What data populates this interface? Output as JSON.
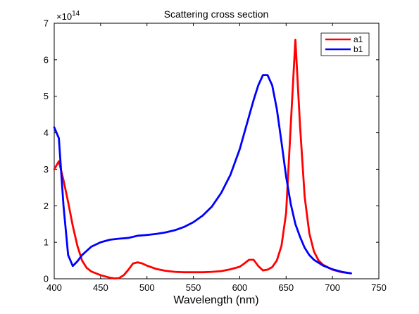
{
  "chart_data": {
    "type": "line",
    "title": "Scattering cross section",
    "xlabel": "Wavelength (nm)",
    "ylabel": "",
    "xlim": [
      400,
      750
    ],
    "ylim": [
      0,
      7
    ],
    "x_ticks": [
      "400",
      "450",
      "500",
      "550",
      "600",
      "650",
      "700",
      "750"
    ],
    "y_ticks": [
      "0",
      "1",
      "2",
      "3",
      "4",
      "5",
      "6",
      "7"
    ],
    "y_multiplier_base": "×10",
    "y_multiplier_exponent": "14",
    "grid": false,
    "legend_position": "top-right",
    "series": [
      {
        "name": "a1",
        "color": "#ff0000",
        "points": [
          [
            400,
            3.0
          ],
          [
            405,
            3.22
          ],
          [
            410,
            2.7
          ],
          [
            415,
            2.1
          ],
          [
            420,
            1.45
          ],
          [
            425,
            0.9
          ],
          [
            430,
            0.5
          ],
          [
            435,
            0.3
          ],
          [
            440,
            0.2
          ],
          [
            450,
            0.1
          ],
          [
            460,
            0.03
          ],
          [
            465,
            0.01
          ],
          [
            470,
            0.02
          ],
          [
            475,
            0.1
          ],
          [
            480,
            0.25
          ],
          [
            485,
            0.42
          ],
          [
            490,
            0.45
          ],
          [
            495,
            0.42
          ],
          [
            500,
            0.36
          ],
          [
            510,
            0.27
          ],
          [
            520,
            0.22
          ],
          [
            530,
            0.19
          ],
          [
            540,
            0.18
          ],
          [
            550,
            0.18
          ],
          [
            560,
            0.18
          ],
          [
            570,
            0.19
          ],
          [
            580,
            0.21
          ],
          [
            590,
            0.26
          ],
          [
            600,
            0.33
          ],
          [
            605,
            0.42
          ],
          [
            610,
            0.52
          ],
          [
            615,
            0.52
          ],
          [
            620,
            0.35
          ],
          [
            625,
            0.23
          ],
          [
            630,
            0.25
          ],
          [
            635,
            0.32
          ],
          [
            640,
            0.5
          ],
          [
            645,
            0.9
          ],
          [
            650,
            1.8
          ],
          [
            655,
            4.2
          ],
          [
            660,
            6.55
          ],
          [
            665,
            4.2
          ],
          [
            670,
            2.25
          ],
          [
            675,
            1.25
          ],
          [
            680,
            0.75
          ],
          [
            685,
            0.5
          ],
          [
            690,
            0.38
          ],
          [
            700,
            0.25
          ],
          [
            710,
            0.18
          ],
          [
            720,
            0.15
          ]
        ]
      },
      {
        "name": "b1",
        "color": "#0000ff",
        "points": [
          [
            400,
            4.15
          ],
          [
            405,
            3.85
          ],
          [
            410,
            2.0
          ],
          [
            415,
            0.65
          ],
          [
            420,
            0.35
          ],
          [
            425,
            0.48
          ],
          [
            430,
            0.65
          ],
          [
            440,
            0.88
          ],
          [
            450,
            1.0
          ],
          [
            460,
            1.07
          ],
          [
            470,
            1.1
          ],
          [
            480,
            1.12
          ],
          [
            485,
            1.15
          ],
          [
            490,
            1.18
          ],
          [
            500,
            1.2
          ],
          [
            510,
            1.23
          ],
          [
            520,
            1.27
          ],
          [
            530,
            1.33
          ],
          [
            540,
            1.42
          ],
          [
            550,
            1.55
          ],
          [
            560,
            1.73
          ],
          [
            570,
            1.98
          ],
          [
            580,
            2.35
          ],
          [
            590,
            2.85
          ],
          [
            600,
            3.55
          ],
          [
            610,
            4.45
          ],
          [
            615,
            4.9
          ],
          [
            620,
            5.3
          ],
          [
            625,
            5.58
          ],
          [
            630,
            5.58
          ],
          [
            635,
            5.3
          ],
          [
            640,
            4.65
          ],
          [
            645,
            3.75
          ],
          [
            650,
            2.8
          ],
          [
            655,
            2.05
          ],
          [
            660,
            1.5
          ],
          [
            665,
            1.15
          ],
          [
            670,
            0.85
          ],
          [
            675,
            0.65
          ],
          [
            680,
            0.52
          ],
          [
            690,
            0.36
          ],
          [
            700,
            0.26
          ],
          [
            710,
            0.19
          ],
          [
            720,
            0.15
          ]
        ]
      }
    ]
  }
}
